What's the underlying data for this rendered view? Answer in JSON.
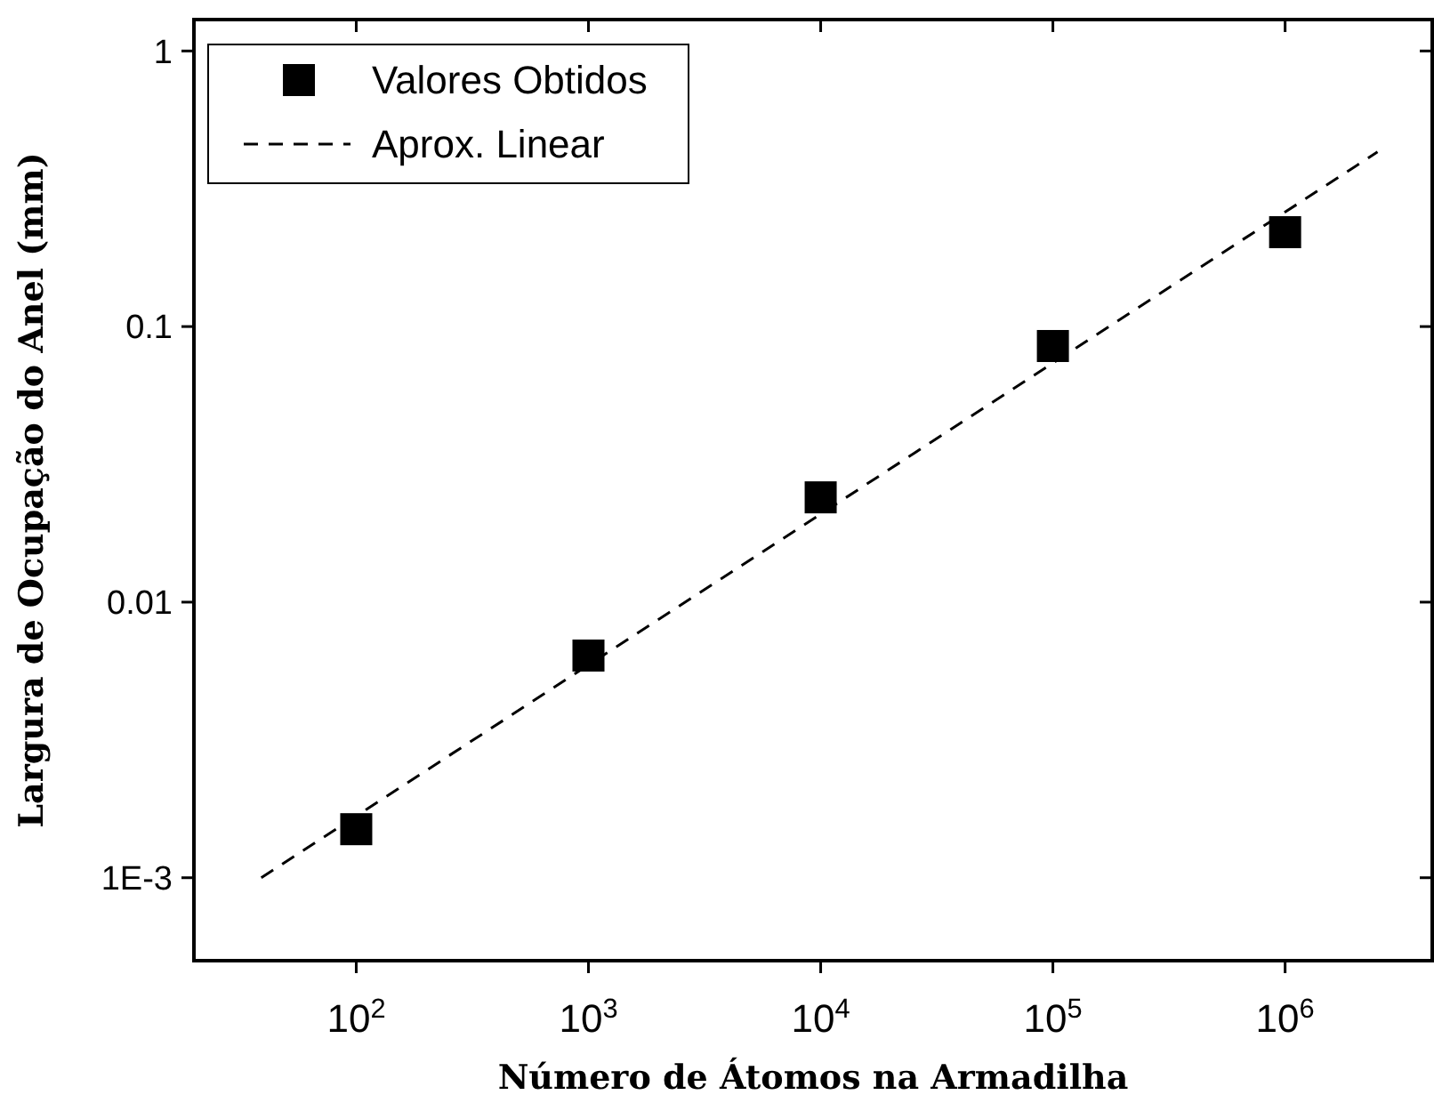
{
  "chart_data": {
    "type": "scatter",
    "xlabel": "Número de Átomos na Armadilha",
    "ylabel": "Largura de Ocupação do Anel (mm)",
    "log": "xy",
    "xlim": [
      20,
      4300000
    ],
    "ylim": [
      0.0005,
      1.3
    ],
    "xticks": [
      {
        "value": 100,
        "label": "10$^{2}$"
      },
      {
        "value": 1000,
        "label": "10$^{3}$"
      },
      {
        "value": 10000,
        "label": "10$^{4}$"
      },
      {
        "value": 100000,
        "label": "10$^{5}$"
      },
      {
        "value": 1000000,
        "label": "10$^{6}$"
      }
    ],
    "yticks": [
      {
        "value": 0.001,
        "label": "1E-3"
      },
      {
        "value": 0.01,
        "label": "0.01"
      },
      {
        "value": 0.1,
        "label": "0.1"
      },
      {
        "value": 1,
        "label": "1"
      }
    ],
    "legend": "top left",
    "grid": false,
    "series": [
      {
        "name": "Valores Obtidos",
        "marker": "square",
        "color": "#000000",
        "x": [
          100,
          1000,
          10000,
          100000,
          1000000
        ],
        "values": [
          0.0015,
          0.0064,
          0.024,
          0.085,
          0.22
        ]
      },
      {
        "name": "Aprox. Linear",
        "type": "line",
        "line_style": "dashed",
        "marker": "none",
        "color": "#000000",
        "x": [
          39,
          2500000
        ],
        "values": [
          0.001,
          0.43
        ]
      }
    ]
  }
}
